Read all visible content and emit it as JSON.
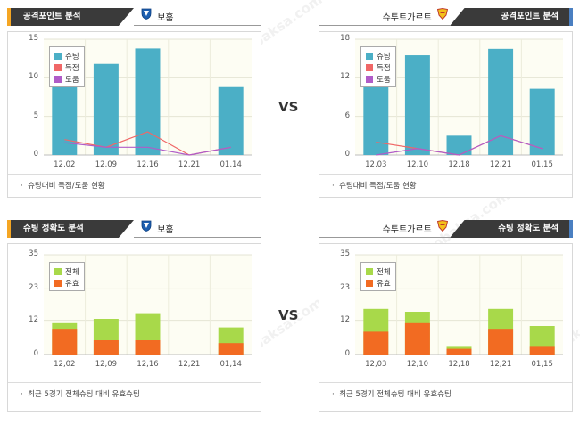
{
  "vs_label": "VS",
  "watermark": "토토박사 totobaksa.com",
  "home_team": "보훔",
  "away_team": "슈투트가르트",
  "colors": {
    "header_bg": "#3a3a3a",
    "accent_left": "#f5a623",
    "accent_right": "#4a7fc1",
    "plot_bg": "#fdfdf3",
    "shot_bar": "#4bafc6",
    "goal_line": "#f06767",
    "assist_line": "#b05cc8",
    "total_bar": "#a8d94a",
    "effective_bar": "#f26b22"
  },
  "panels": [
    {
      "title": "공격포인트 분석",
      "team": "보훔",
      "team_icon": "bochum-shield-icon",
      "caption": "슈팅대비 득점/도움 현황",
      "chart_data": {
        "type": "bar",
        "categories": [
          "12,02",
          "12,09",
          "12,16",
          "12,21",
          "01,14"
        ],
        "ylim": [
          0,
          15
        ],
        "yticks": [
          0,
          5,
          10,
          15
        ],
        "series": [
          {
            "name": "슈팅",
            "kind": "bar",
            "color": "#4bafc6",
            "values": [
              10,
              11.8,
              13.8,
              0,
              8.8
            ]
          },
          {
            "name": "득점",
            "kind": "line",
            "color": "#f06767",
            "values": [
              2,
              1,
              3,
              0,
              1
            ]
          },
          {
            "name": "도움",
            "kind": "line",
            "color": "#b05cc8",
            "values": [
              1.6,
              1,
              1,
              0,
              1
            ]
          }
        ]
      }
    },
    {
      "title": "공격포인트 분석",
      "team": "슈투트가르트",
      "team_icon": "stuttgart-crest-icon",
      "caption": "슈팅대비 득점/도움 현황",
      "chart_data": {
        "type": "bar",
        "categories": [
          "12,03",
          "12,10",
          "12,18",
          "12,21",
          "01,15"
        ],
        "ylim": [
          0,
          18
        ],
        "yticks": [
          0,
          6,
          12,
          18
        ],
        "series": [
          {
            "name": "슈팅",
            "kind": "bar",
            "color": "#4bafc6",
            "values": [
              12,
              15.5,
              3,
              16.5,
              10.3
            ]
          },
          {
            "name": "득점",
            "kind": "line",
            "color": "#f06767",
            "values": [
              2,
              1,
              0,
              3,
              1
            ]
          },
          {
            "name": "도움",
            "kind": "line",
            "color": "#b05cc8",
            "values": [
              0,
              1,
              0,
              3,
              1
            ]
          }
        ]
      }
    },
    {
      "title": "슈팅 정확도 분석",
      "team": "보훔",
      "team_icon": "bochum-shield-icon",
      "caption": "최근 5경기 전체슈팅 대비 유효슈팅",
      "chart_data": {
        "type": "bar",
        "stacked": true,
        "categories": [
          "12,02",
          "12,09",
          "12,16",
          "12,21",
          "01,14"
        ],
        "ylim": [
          0,
          35
        ],
        "yticks": [
          0,
          12,
          23,
          35
        ],
        "series": [
          {
            "name": "전체",
            "kind": "bar",
            "color": "#a8d94a",
            "values": [
              11,
              12.5,
              14.5,
              0,
              9.5
            ]
          },
          {
            "name": "유효",
            "kind": "bar",
            "color": "#f26b22",
            "values": [
              9,
              5,
              5,
              0,
              4
            ]
          }
        ]
      }
    },
    {
      "title": "슈팅 정확도 분석",
      "team": "슈투트가르트",
      "team_icon": "stuttgart-crest-icon",
      "caption": "최근 5경기 전체슈팅 대비 유효슈팅",
      "chart_data": {
        "type": "bar",
        "stacked": true,
        "categories": [
          "12,03",
          "12,10",
          "12,18",
          "12,21",
          "01,15"
        ],
        "ylim": [
          0,
          35
        ],
        "yticks": [
          0,
          12,
          23,
          35
        ],
        "series": [
          {
            "name": "전체",
            "kind": "bar",
            "color": "#a8d94a",
            "values": [
              16,
              15,
              3,
              16,
              10
            ]
          },
          {
            "name": "유효",
            "kind": "bar",
            "color": "#f26b22",
            "values": [
              8,
              11,
              2,
              9,
              3
            ]
          }
        ]
      }
    }
  ]
}
